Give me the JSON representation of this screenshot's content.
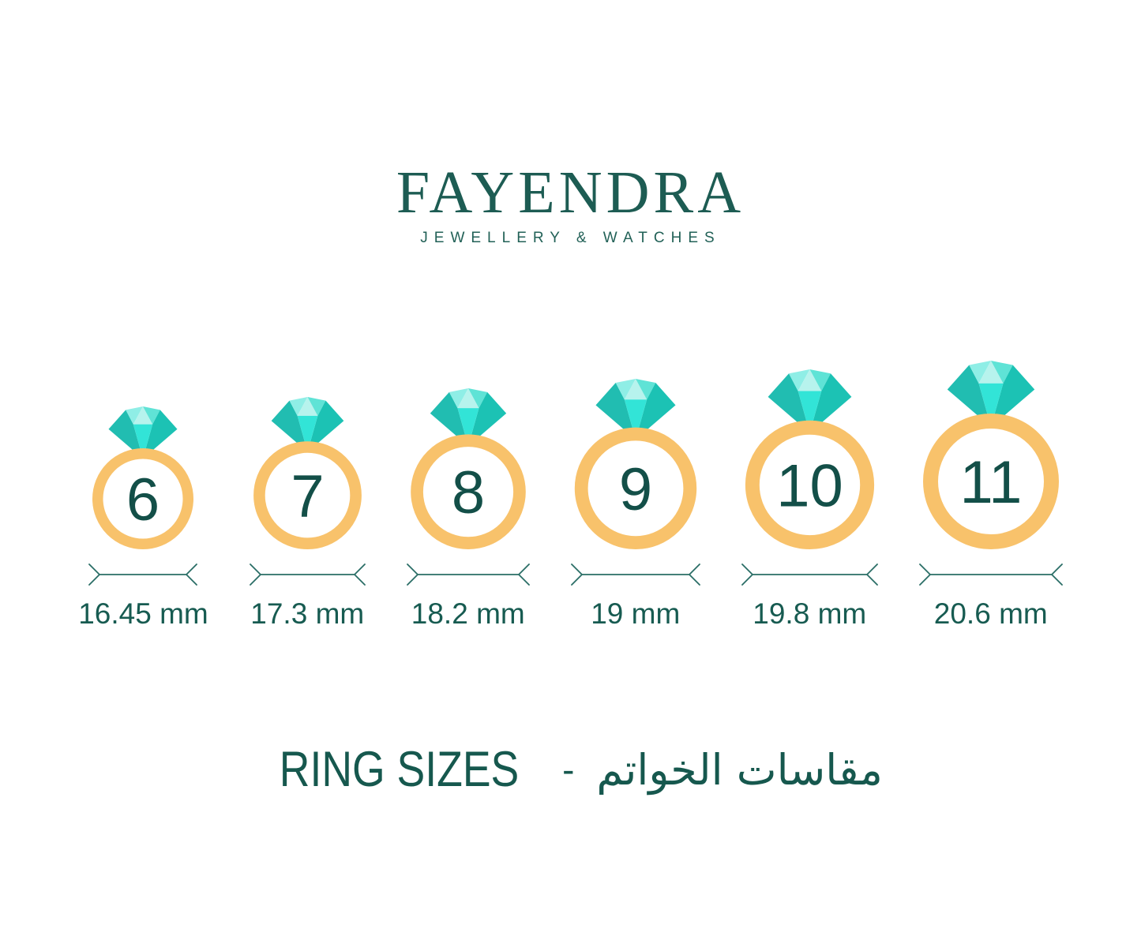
{
  "brand": {
    "name": "FAYENDRA",
    "tagline": "JEWELLERY & WATCHES"
  },
  "rings": [
    {
      "size": "6",
      "diameter_label": "16.45 mm"
    },
    {
      "size": "7",
      "diameter_label": "17.3 mm"
    },
    {
      "size": "8",
      "diameter_label": "18.2 mm"
    },
    {
      "size": "9",
      "diameter_label": "19 mm"
    },
    {
      "size": "10",
      "diameter_label": "19.8 mm"
    },
    {
      "size": "11",
      "diameter_label": "20.6 mm"
    }
  ],
  "footer": {
    "title_en": "RING SIZES",
    "separator": "-",
    "title_ar": "مقاسات الخواتم"
  },
  "colors": {
    "text_teal": "#1d5c53",
    "number": "#134f48",
    "label": "#175b51",
    "line": "#2a6e66",
    "band": "#f8c26b",
    "diamond_facets": [
      "#21bdb1",
      "#8feee6",
      "#b7f3ed",
      "#5fe3d6",
      "#1cc2b4",
      "#32e4d7"
    ]
  }
}
